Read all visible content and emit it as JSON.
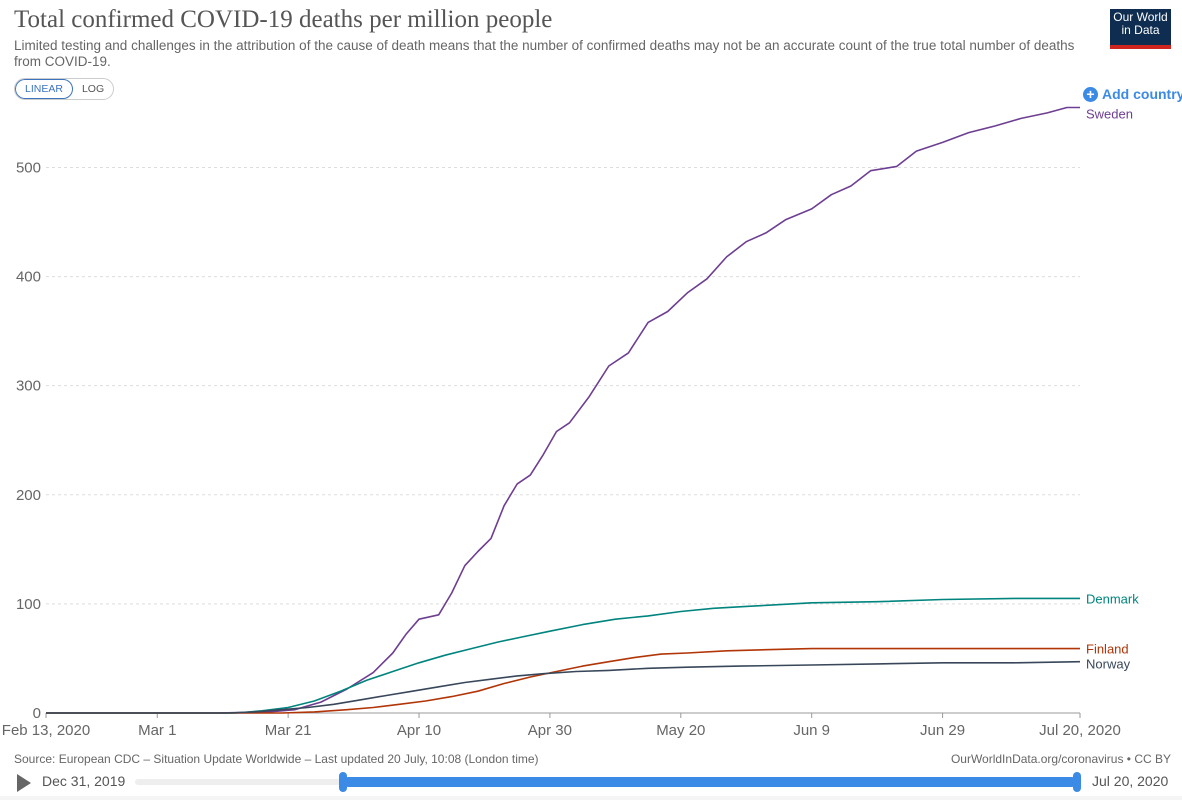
{
  "header": {
    "title": "Total confirmed COVID-19 deaths per million people",
    "subtitle": "Limited testing and challenges in the attribution of the cause of death means that the number of confirmed deaths may not be an accurate count of the true total number of deaths from COVID-19.",
    "logo_line1": "Our World",
    "logo_line2": "in Data"
  },
  "controls": {
    "linear_label": "LINEAR",
    "log_label": "LOG",
    "add_country_label": "Add country"
  },
  "footer": {
    "source": "Source: European CDC – Situation Update Worldwide – Last updated 20 July, 10:08 (London time)",
    "site": "OurWorldInData.org/coronavirus • CC BY"
  },
  "timeline": {
    "start_label": "Dec 31, 2019",
    "end_label": "Jul 20, 2020"
  },
  "colors": {
    "sweden": "#6d3e91",
    "denmark": "#00847e",
    "finland": "#b13507",
    "norway": "#38475a",
    "accent": "#3b8ae6"
  },
  "chart_data": {
    "type": "line",
    "title": "Total confirmed COVID-19 deaths per million people",
    "xlabel": "",
    "ylabel": "",
    "x_range": [
      "Feb 13, 2020",
      "Jul 20, 2020"
    ],
    "ylim": [
      0,
      560
    ],
    "y_ticks": [
      0,
      100,
      200,
      300,
      400,
      500
    ],
    "x_ticks": [
      {
        "date": "2020-02-13",
        "label": "Feb 13, 2020"
      },
      {
        "date": "2020-03-01",
        "label": "Mar 1"
      },
      {
        "date": "2020-03-21",
        "label": "Mar 21"
      },
      {
        "date": "2020-04-10",
        "label": "Apr 10"
      },
      {
        "date": "2020-04-30",
        "label": "Apr 30"
      },
      {
        "date": "2020-05-20",
        "label": "May 20"
      },
      {
        "date": "2020-06-09",
        "label": "Jun 9"
      },
      {
        "date": "2020-06-29",
        "label": "Jun 29"
      },
      {
        "date": "2020-07-20",
        "label": "Jul 20, 2020"
      }
    ],
    "grid": true,
    "legend": "labels at line ends (right)",
    "series": [
      {
        "name": "Sweden",
        "color": "#6d3e91",
        "points": [
          [
            "2020-02-13",
            0
          ],
          [
            "2020-03-10",
            0
          ],
          [
            "2020-03-18",
            1
          ],
          [
            "2020-03-22",
            3
          ],
          [
            "2020-03-26",
            10
          ],
          [
            "2020-03-30",
            22
          ],
          [
            "2020-04-03",
            37
          ],
          [
            "2020-04-06",
            55
          ],
          [
            "2020-04-08",
            72
          ],
          [
            "2020-04-10",
            86
          ],
          [
            "2020-04-13",
            90
          ],
          [
            "2020-04-15",
            110
          ],
          [
            "2020-04-17",
            135
          ],
          [
            "2020-04-19",
            148
          ],
          [
            "2020-04-21",
            160
          ],
          [
            "2020-04-23",
            190
          ],
          [
            "2020-04-25",
            210
          ],
          [
            "2020-04-27",
            218
          ],
          [
            "2020-04-29",
            237
          ],
          [
            "2020-05-01",
            258
          ],
          [
            "2020-05-03",
            266
          ],
          [
            "2020-05-06",
            290
          ],
          [
            "2020-05-09",
            318
          ],
          [
            "2020-05-12",
            330
          ],
          [
            "2020-05-15",
            358
          ],
          [
            "2020-05-18",
            368
          ],
          [
            "2020-05-21",
            385
          ],
          [
            "2020-05-24",
            398
          ],
          [
            "2020-05-27",
            418
          ],
          [
            "2020-05-30",
            432
          ],
          [
            "2020-06-02",
            440
          ],
          [
            "2020-06-05",
            452
          ],
          [
            "2020-06-09",
            462
          ],
          [
            "2020-06-12",
            475
          ],
          [
            "2020-06-15",
            483
          ],
          [
            "2020-06-18",
            497
          ],
          [
            "2020-06-22",
            501
          ],
          [
            "2020-06-25",
            515
          ],
          [
            "2020-06-29",
            523
          ],
          [
            "2020-07-03",
            532
          ],
          [
            "2020-07-07",
            538
          ],
          [
            "2020-07-11",
            545
          ],
          [
            "2020-07-15",
            550
          ],
          [
            "2020-07-18",
            555
          ],
          [
            "2020-07-20",
            555
          ]
        ]
      },
      {
        "name": "Denmark",
        "color": "#00847e",
        "points": [
          [
            "2020-02-13",
            0
          ],
          [
            "2020-03-13",
            0
          ],
          [
            "2020-03-17",
            2
          ],
          [
            "2020-03-21",
            5
          ],
          [
            "2020-03-25",
            11
          ],
          [
            "2020-03-29",
            20
          ],
          [
            "2020-04-02",
            30
          ],
          [
            "2020-04-06",
            38
          ],
          [
            "2020-04-10",
            46
          ],
          [
            "2020-04-14",
            53
          ],
          [
            "2020-04-18",
            59
          ],
          [
            "2020-04-22",
            65
          ],
          [
            "2020-04-26",
            70
          ],
          [
            "2020-04-30",
            75
          ],
          [
            "2020-05-05",
            81
          ],
          [
            "2020-05-10",
            86
          ],
          [
            "2020-05-15",
            89
          ],
          [
            "2020-05-20",
            93
          ],
          [
            "2020-05-25",
            96
          ],
          [
            "2020-05-31",
            98
          ],
          [
            "2020-06-09",
            101
          ],
          [
            "2020-06-19",
            102
          ],
          [
            "2020-06-29",
            104
          ],
          [
            "2020-07-10",
            105
          ],
          [
            "2020-07-20",
            105
          ]
        ]
      },
      {
        "name": "Finland",
        "color": "#b13507",
        "points": [
          [
            "2020-02-13",
            0
          ],
          [
            "2020-03-20",
            0
          ],
          [
            "2020-03-25",
            1
          ],
          [
            "2020-03-30",
            3
          ],
          [
            "2020-04-03",
            5
          ],
          [
            "2020-04-07",
            8
          ],
          [
            "2020-04-11",
            11
          ],
          [
            "2020-04-15",
            15
          ],
          [
            "2020-04-19",
            20
          ],
          [
            "2020-04-23",
            27
          ],
          [
            "2020-04-27",
            33
          ],
          [
            "2020-05-01",
            38
          ],
          [
            "2020-05-05",
            43
          ],
          [
            "2020-05-09",
            47
          ],
          [
            "2020-05-13",
            51
          ],
          [
            "2020-05-17",
            54
          ],
          [
            "2020-05-21",
            55
          ],
          [
            "2020-05-27",
            57
          ],
          [
            "2020-06-02",
            58
          ],
          [
            "2020-06-09",
            59
          ],
          [
            "2020-06-19",
            59
          ],
          [
            "2020-06-29",
            59
          ],
          [
            "2020-07-10",
            59
          ],
          [
            "2020-07-20",
            59
          ]
        ]
      },
      {
        "name": "Norway",
        "color": "#38475a",
        "points": [
          [
            "2020-02-13",
            0
          ],
          [
            "2020-03-12",
            0
          ],
          [
            "2020-03-16",
            1
          ],
          [
            "2020-03-20",
            3
          ],
          [
            "2020-03-24",
            5
          ],
          [
            "2020-03-28",
            8
          ],
          [
            "2020-04-01",
            12
          ],
          [
            "2020-04-05",
            16
          ],
          [
            "2020-04-09",
            20
          ],
          [
            "2020-04-13",
            24
          ],
          [
            "2020-04-17",
            28
          ],
          [
            "2020-04-21",
            31
          ],
          [
            "2020-04-25",
            34
          ],
          [
            "2020-04-29",
            36
          ],
          [
            "2020-05-04",
            38
          ],
          [
            "2020-05-09",
            39
          ],
          [
            "2020-05-15",
            41
          ],
          [
            "2020-05-21",
            42
          ],
          [
            "2020-05-29",
            43
          ],
          [
            "2020-06-09",
            44
          ],
          [
            "2020-06-19",
            45
          ],
          [
            "2020-06-29",
            46
          ],
          [
            "2020-07-10",
            46
          ],
          [
            "2020-07-20",
            47
          ]
        ]
      }
    ]
  }
}
